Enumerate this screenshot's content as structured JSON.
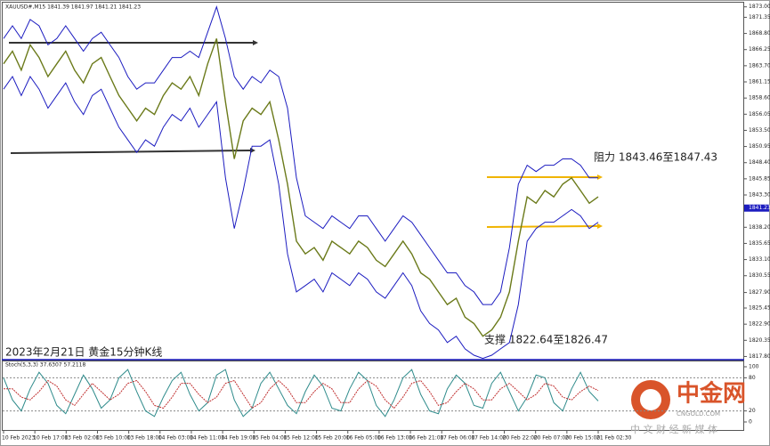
{
  "chart_data": [
    {
      "type": "line",
      "title": "XAUUSD#,M15 1841.39 1841.97 1841.21 1841.23",
      "subtitle": "2023年2月21日 黄金15分钟K线",
      "annotations": [
        "阻力 1843.46至1847.43",
        "支撑 1822.64至1826.47"
      ],
      "last_price": {
        "value": 1841.23,
        "label": "1841.23"
      },
      "xticks": [
        "10 Feb 2023",
        "10 Feb 17:00",
        "13 Feb 02:00",
        "13 Feb 10:00",
        "13 Feb 18:00",
        "14 Feb 03:00",
        "14 Feb 11:00",
        "14 Feb 19:00",
        "15 Feb 04:00",
        "15 Feb 12:00",
        "15 Feb 20:00",
        "16 Feb 05:00",
        "16 Feb 13:00",
        "16 Feb 21:00",
        "17 Feb 06:00",
        "17 Feb 14:00",
        "20 Feb 22:00",
        "20 Feb 07:00",
        "20 Feb 15:00",
        "21 Feb 02:30"
      ],
      "ylim": [
        1817.3,
        1873.8
      ],
      "yticks": [
        {
          "value": 1873.0,
          "label": "1873.00"
        },
        {
          "value": 1871.35,
          "label": "1871.35"
        },
        {
          "value": 1868.8,
          "label": "1868.80"
        },
        {
          "value": 1866.25,
          "label": "1866.25"
        },
        {
          "value": 1863.7,
          "label": "1863.70"
        },
        {
          "value": 1861.15,
          "label": "1861.15"
        },
        {
          "value": 1858.6,
          "label": "1858.60"
        },
        {
          "value": 1856.05,
          "label": "1856.05"
        },
        {
          "value": 1853.5,
          "label": "1853.50"
        },
        {
          "value": 1850.95,
          "label": "1850.95"
        },
        {
          "value": 1848.4,
          "label": "1848.40"
        },
        {
          "value": 1845.85,
          "label": "1845.85"
        },
        {
          "value": 1843.3,
          "label": "1843.30"
        },
        {
          "value": 1838.2,
          "label": "1838.20"
        },
        {
          "value": 1835.65,
          "label": "1835.65"
        },
        {
          "value": 1833.1,
          "label": "1833.10"
        },
        {
          "value": 1830.55,
          "label": "1830.55"
        },
        {
          "value": 1827.9,
          "label": "1827.90"
        },
        {
          "value": 1825.45,
          "label": "1825.45"
        },
        {
          "value": 1822.9,
          "label": "1822.90"
        },
        {
          "value": 1820.35,
          "label": "1820.35"
        },
        {
          "value": 1817.8,
          "label": "1817.80"
        }
      ],
      "series": [
        {
          "color": "#6b7a1a",
          "values": [
            1864,
            1866,
            1863,
            1867,
            1865,
            1862,
            1864,
            1866,
            1863,
            1861,
            1864,
            1865,
            1862,
            1859,
            1857,
            1855,
            1857,
            1856,
            1859,
            1861,
            1860,
            1862,
            1859,
            1864,
            1868,
            1858,
            1849,
            1855,
            1857,
            1856,
            1858,
            1852,
            1845,
            1836,
            1834,
            1835,
            1833,
            1836,
            1835,
            1834,
            1836,
            1835,
            1833,
            1832,
            1834,
            1836,
            1834,
            1831,
            1830,
            1828,
            1826,
            1827,
            1824,
            1823,
            1821,
            1822,
            1824,
            1828,
            1836,
            1843,
            1842,
            1844,
            1843,
            1845,
            1846,
            1844,
            1842,
            1843
          ]
        },
        {
          "color": "#1c1cc0",
          "values": [
            1868,
            1870,
            1868,
            1871,
            1870,
            1867,
            1868,
            1870,
            1868,
            1866,
            1868,
            1869,
            1867,
            1865,
            1862,
            1860,
            1861,
            1861,
            1863,
            1865,
            1865,
            1866,
            1865,
            1869,
            1873,
            1868,
            1862,
            1860,
            1862,
            1861,
            1863,
            1862,
            1857,
            1846,
            1840,
            1839,
            1838,
            1840,
            1839,
            1838,
            1840,
            1840,
            1838,
            1836,
            1838,
            1840,
            1839,
            1837,
            1835,
            1833,
            1831,
            1831,
            1829,
            1828,
            1826,
            1826,
            1828,
            1835,
            1845,
            1848,
            1847,
            1848,
            1848,
            1849,
            1849,
            1848,
            1846,
            1846
          ]
        },
        {
          "color": "#1c1cc0",
          "values": [
            1860,
            1862,
            1859,
            1862,
            1860,
            1857,
            1859,
            1861,
            1858,
            1856,
            1859,
            1860,
            1857,
            1854,
            1852,
            1850,
            1852,
            1851,
            1854,
            1856,
            1855,
            1857,
            1854,
            1856,
            1858,
            1846,
            1838,
            1844,
            1851,
            1851,
            1852,
            1845,
            1834,
            1828,
            1829,
            1830,
            1828,
            1831,
            1830,
            1829,
            1831,
            1830,
            1828,
            1827,
            1829,
            1831,
            1829,
            1825,
            1823,
            1822,
            1820,
            1821,
            1819,
            1818,
            1817.5,
            1818,
            1819,
            1820,
            1826,
            1836,
            1838,
            1839,
            1839,
            1840,
            1841,
            1840,
            1838,
            1839
          ]
        }
      ]
    },
    {
      "type": "line",
      "title": "Stoch(5,3,3) 37.6307 57.2118",
      "ylim": [
        0,
        100
      ],
      "yticks": [
        100,
        80,
        20,
        0
      ],
      "series": [
        {
          "color": "#2e8b8b",
          "values": [
            80,
            40,
            20,
            60,
            90,
            70,
            30,
            15,
            50,
            85,
            60,
            25,
            40,
            80,
            95,
            55,
            20,
            10,
            45,
            75,
            90,
            50,
            20,
            35,
            85,
            95,
            40,
            10,
            25,
            70,
            90,
            60,
            30,
            15,
            55,
            85,
            65,
            25,
            20,
            60,
            90,
            75,
            30,
            10,
            40,
            80,
            95,
            50,
            20,
            15,
            60,
            85,
            70,
            30,
            25,
            70,
            90,
            55,
            20,
            45,
            85,
            80,
            35,
            20,
            60,
            90,
            55,
            38
          ]
        },
        {
          "color": "#c03030",
          "values": [
            60,
            60,
            45,
            40,
            55,
            75,
            65,
            40,
            30,
            50,
            70,
            55,
            40,
            50,
            70,
            75,
            55,
            30,
            25,
            45,
            70,
            70,
            50,
            35,
            45,
            70,
            75,
            50,
            25,
            35,
            60,
            75,
            60,
            35,
            35,
            55,
            70,
            60,
            35,
            35,
            60,
            75,
            65,
            40,
            25,
            45,
            70,
            75,
            55,
            30,
            35,
            55,
            70,
            60,
            40,
            40,
            60,
            70,
            55,
            40,
            50,
            70,
            65,
            45,
            40,
            55,
            65,
            57
          ]
        }
      ]
    }
  ],
  "watermark": {
    "name": "中金网",
    "url": "CNGOLD.COM",
    "tagline": "中 文 财 经 新 媒 体"
  }
}
